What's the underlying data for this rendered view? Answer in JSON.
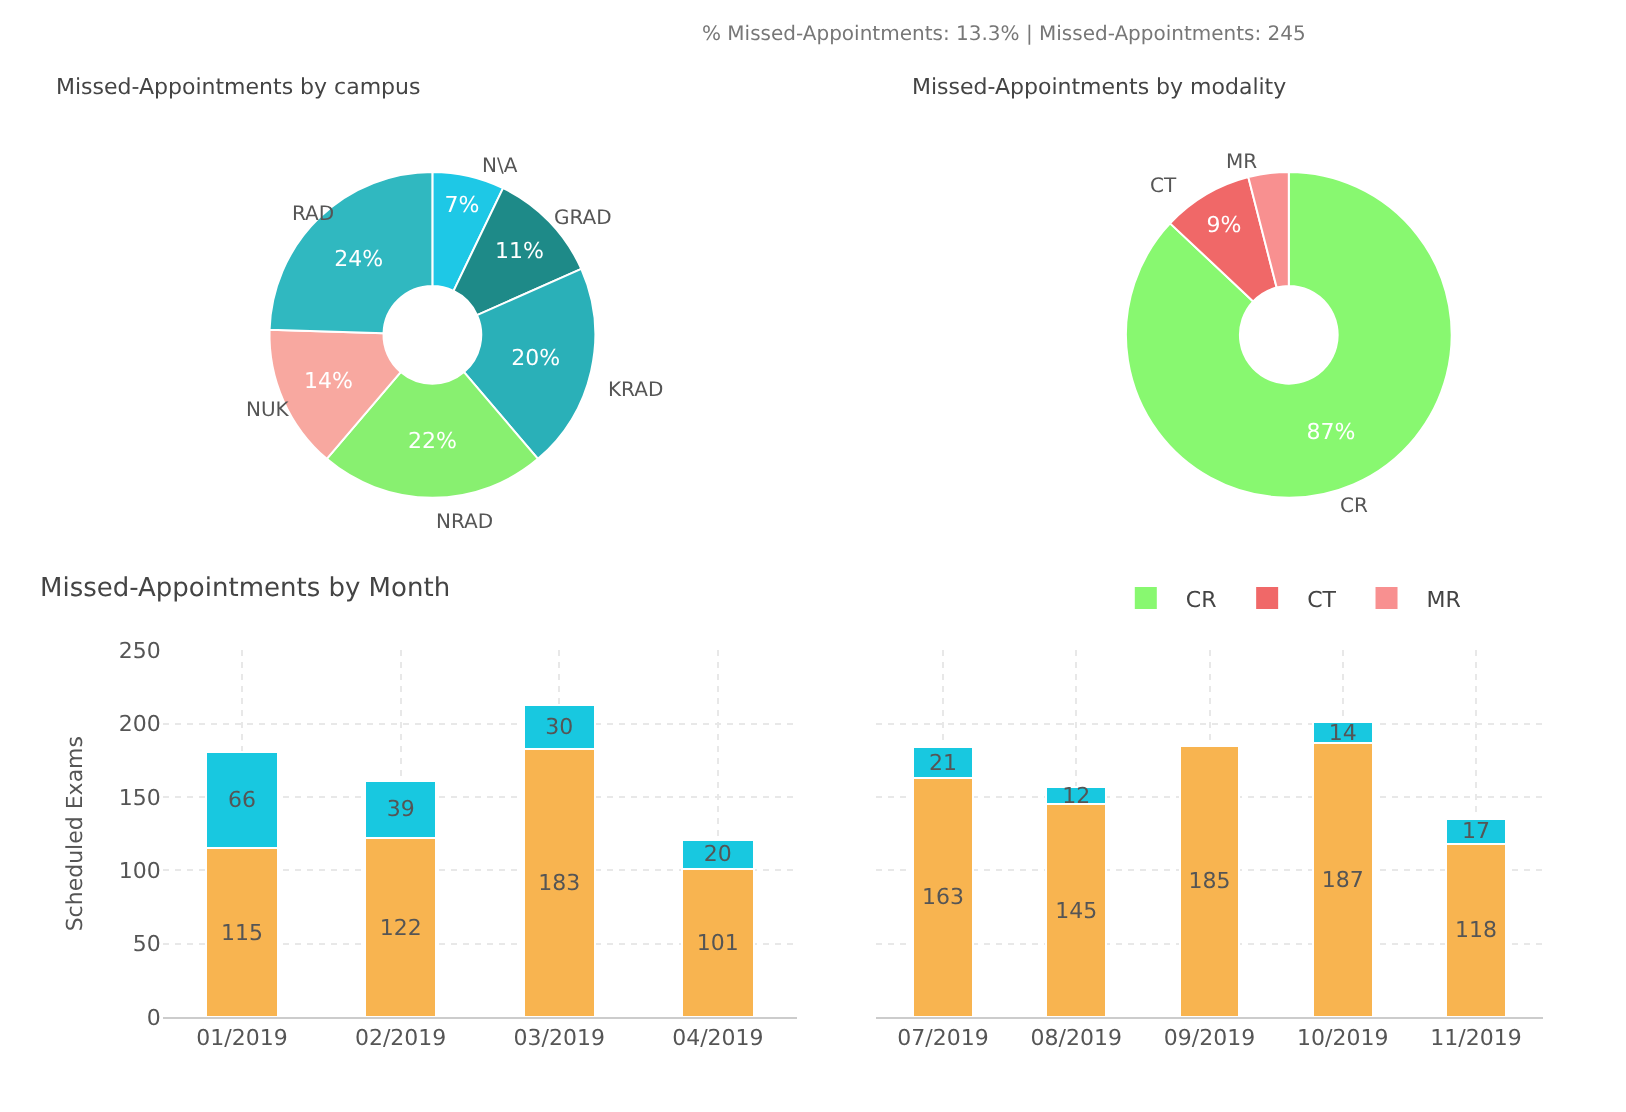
{
  "chart_data": [
    {
      "type": "donut",
      "title": "Missed-Appointments by campus",
      "annotations": [
        "% Missed-Appointments: 13.3% | Missed-Appointments: 245"
      ],
      "categories": [
        "N\\A",
        "GRAD",
        "KRAD",
        "NRAD",
        "NUK",
        "RAD"
      ],
      "values": [
        7,
        11,
        20,
        22,
        14,
        24
      ],
      "value_labels": [
        "7%",
        "11%",
        "20%",
        "22%",
        "14%",
        "24%"
      ],
      "colors": [
        "#1ec8e6",
        "#1e8a88",
        "#2ab0b8",
        "#88f070",
        "#f8a8a0",
        "#30b8c0"
      ],
      "legend": false
    },
    {
      "type": "donut",
      "title": "Missed-Appointments by modality",
      "categories": [
        "CR",
        "CT",
        "MR"
      ],
      "values": [
        87,
        9,
        4
      ],
      "value_labels": [
        "87%",
        "9%",
        null
      ],
      "colors": [
        "#88f870",
        "#f06868",
        "#f89090"
      ],
      "legend": "bottom"
    },
    {
      "type": "bar",
      "title": "Missed-Appointments by Month",
      "ylabel": "Scheduled Exams",
      "stacked": true,
      "data_labels": true,
      "categories": [
        "01/2019",
        "02/2019",
        "03/2019",
        "04/2019"
      ],
      "series": [
        {
          "color": "#f8b450",
          "values": [
            115,
            122,
            183,
            101
          ]
        },
        {
          "color": "#18c8e0",
          "values": [
            66,
            39,
            30,
            20
          ]
        }
      ],
      "ylim": [
        0,
        250
      ],
      "yticks": [
        0,
        50,
        100,
        150,
        200,
        250
      ],
      "grid": true,
      "legend": false
    },
    {
      "type": "bar",
      "stacked": true,
      "data_labels": true,
      "categories": [
        "07/2019",
        "08/2019",
        "09/2019",
        "10/2019",
        "11/2019"
      ],
      "series": [
        {
          "color": "#f8b450",
          "values": [
            163,
            145,
            185,
            187,
            118
          ]
        },
        {
          "color": "#18c8e0",
          "values": [
            21,
            12,
            null,
            14,
            17
          ]
        }
      ],
      "ylim": [
        0,
        250
      ],
      "yticks": [
        0,
        50,
        100,
        150,
        200,
        250
      ],
      "tick_labels": "x",
      "grid": true,
      "legend": false
    }
  ]
}
